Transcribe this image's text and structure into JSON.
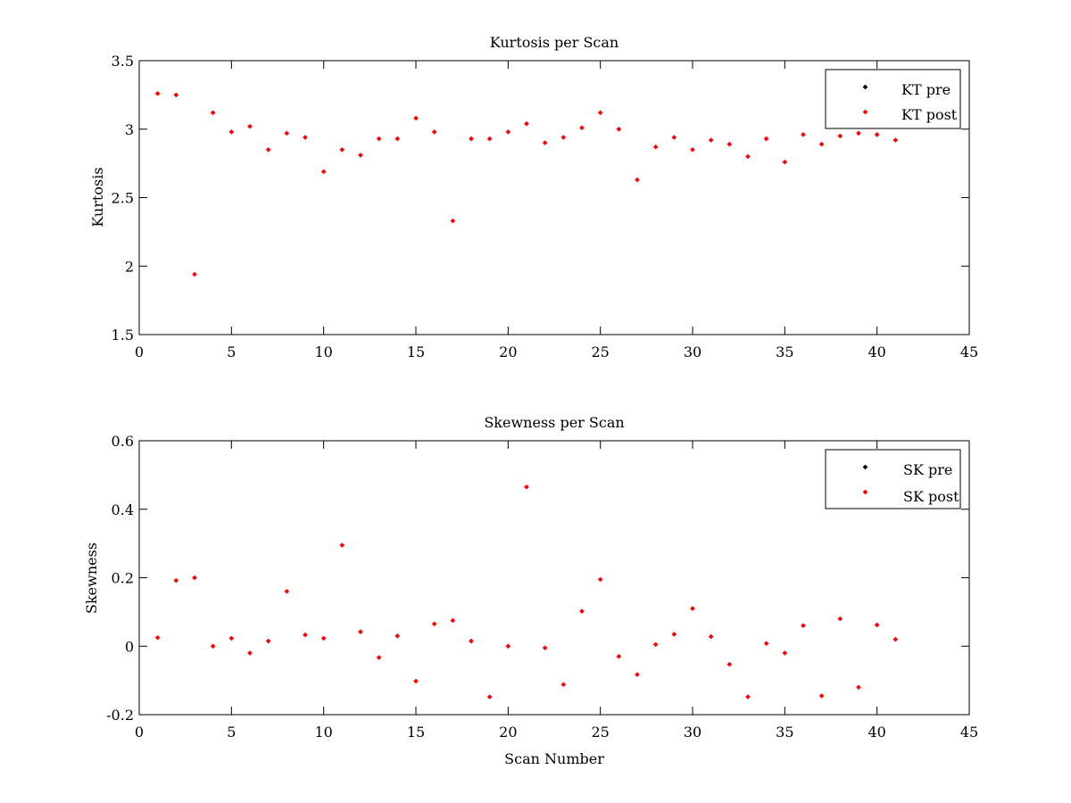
{
  "chart_data": [
    {
      "type": "scatter",
      "title": "Kurtosis per Scan",
      "xlabel": "",
      "ylabel": "Kurtosis",
      "xlim": [
        0,
        45
      ],
      "ylim": [
        1.5,
        3.5
      ],
      "xticks": [
        0,
        5,
        10,
        15,
        20,
        25,
        30,
        35,
        40,
        45
      ],
      "yticks": [
        1.5,
        2,
        2.5,
        3,
        3.5
      ],
      "xtick_labels": [
        "0",
        "5",
        "10",
        "15",
        "20",
        "25",
        "30",
        "35",
        "40",
        "45"
      ],
      "ytick_labels": [
        "1.5",
        "2",
        "2.5",
        "3",
        "3.5"
      ],
      "grid": false,
      "legend_position": "top-right",
      "series": [
        {
          "name": "KT pre",
          "color": "#000000",
          "x": [],
          "y": []
        },
        {
          "name": "KT post",
          "color": "#ff0000",
          "x": [
            1,
            2,
            3,
            4,
            5,
            6,
            7,
            8,
            9,
            10,
            11,
            12,
            13,
            14,
            15,
            16,
            17,
            18,
            19,
            20,
            21,
            22,
            23,
            24,
            25,
            26,
            27,
            28,
            29,
            30,
            31,
            32,
            33,
            34,
            35,
            36,
            37,
            38,
            39,
            40,
            41
          ],
          "y": [
            3.26,
            3.25,
            1.94,
            3.12,
            2.98,
            3.02,
            2.85,
            2.97,
            2.94,
            2.69,
            2.85,
            2.81,
            2.93,
            2.93,
            3.08,
            2.98,
            2.33,
            2.93,
            2.93,
            2.98,
            3.04,
            2.9,
            2.94,
            3.01,
            3.12,
            3.0,
            2.63,
            2.87,
            2.94,
            2.85,
            2.92,
            2.89,
            2.8,
            2.93,
            2.76,
            2.96,
            2.89,
            2.95,
            2.97,
            2.96,
            2.92
          ]
        }
      ]
    },
    {
      "type": "scatter",
      "title": "Skewness per Scan",
      "xlabel": "Scan Number",
      "ylabel": "Skewness",
      "xlim": [
        0,
        45
      ],
      "ylim": [
        -0.2,
        0.6
      ],
      "xticks": [
        0,
        5,
        10,
        15,
        20,
        25,
        30,
        35,
        40,
        45
      ],
      "yticks": [
        -0.2,
        0,
        0.2,
        0.4,
        0.6
      ],
      "xtick_labels": [
        "0",
        "5",
        "10",
        "15",
        "20",
        "25",
        "30",
        "35",
        "40",
        "45"
      ],
      "ytick_labels": [
        "-0.2",
        "0",
        "0.2",
        "0.4",
        "0.6"
      ],
      "grid": false,
      "legend_position": "top-right",
      "series": [
        {
          "name": "SK pre",
          "color": "#000000",
          "x": [],
          "y": []
        },
        {
          "name": "SK post",
          "color": "#ff0000",
          "x": [
            1,
            2,
            3,
            4,
            5,
            6,
            7,
            8,
            9,
            10,
            11,
            12,
            13,
            14,
            15,
            16,
            17,
            18,
            19,
            20,
            21,
            22,
            23,
            24,
            25,
            26,
            27,
            28,
            29,
            30,
            31,
            32,
            33,
            34,
            35,
            36,
            37,
            38,
            39,
            40,
            41
          ],
          "y": [
            0.025,
            0.192,
            0.2,
            0.0,
            0.023,
            -0.02,
            0.015,
            0.16,
            0.033,
            0.023,
            0.295,
            0.042,
            -0.033,
            0.03,
            -0.102,
            0.065,
            0.075,
            0.015,
            -0.148,
            0.0,
            0.465,
            -0.005,
            -0.112,
            0.102,
            0.195,
            -0.03,
            -0.083,
            0.005,
            0.035,
            0.11,
            0.028,
            -0.053,
            -0.148,
            0.008,
            -0.02,
            0.06,
            -0.145,
            0.08,
            -0.12,
            0.062,
            0.02
          ]
        }
      ]
    }
  ]
}
